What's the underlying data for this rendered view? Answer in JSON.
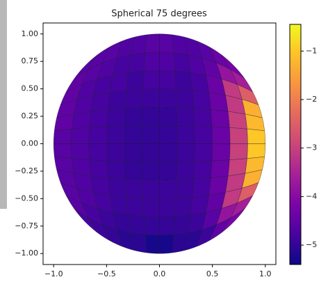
{
  "chart_data": {
    "type": "mesh",
    "title": "Spherical 75 degrees",
    "cmap": "plasma",
    "z": [
      [
        -4.6,
        -4.6,
        -4.6,
        -4.7,
        -4.7,
        -4.6,
        -4.6,
        -4.7,
        -4.7,
        -4.6,
        -4.4,
        -4.2
      ],
      [
        -4.5,
        -4.6,
        -4.7,
        -4.8,
        -4.8,
        -4.7,
        -4.7,
        -4.8,
        -4.7,
        -4.5,
        -3.8,
        -3.6
      ],
      [
        -4.5,
        -4.7,
        -4.8,
        -4.8,
        -4.9,
        -4.8,
        -4.8,
        -4.9,
        -4.8,
        -4.4,
        -3.1,
        -2.5
      ],
      [
        -4.5,
        -4.7,
        -4.8,
        -4.9,
        -4.9,
        -4.9,
        -4.9,
        -4.9,
        -4.8,
        -4.4,
        -3.1,
        -1.3
      ],
      [
        -4.5,
        -4.7,
        -4.8,
        -4.9,
        -5.0,
        -5.0,
        -5.0,
        -4.9,
        -4.8,
        -4.4,
        -3.0,
        -1.2
      ],
      [
        -4.6,
        -4.7,
        -4.8,
        -4.9,
        -5.0,
        -5.0,
        -5.0,
        -4.9,
        -4.8,
        -4.4,
        -3.0,
        -1.0
      ],
      [
        -4.6,
        -4.7,
        -4.8,
        -4.9,
        -5.0,
        -5.0,
        -5.0,
        -4.9,
        -4.8,
        -4.4,
        -3.0,
        -1.0
      ],
      [
        -4.6,
        -4.7,
        -4.8,
        -4.9,
        -5.0,
        -5.0,
        -5.0,
        -4.9,
        -4.8,
        -4.4,
        -3.0,
        -1.2
      ],
      [
        -4.6,
        -4.7,
        -4.8,
        -4.9,
        -4.9,
        -4.9,
        -4.9,
        -4.9,
        -4.8,
        -4.4,
        -3.1,
        -1.3
      ],
      [
        -4.6,
        -4.7,
        -4.8,
        -4.9,
        -4.9,
        -4.9,
        -4.9,
        -4.9,
        -4.8,
        -4.5,
        -3.1,
        -2.5
      ],
      [
        -4.6,
        -4.8,
        -4.9,
        -5.0,
        -5.0,
        -5.0,
        -5.0,
        -5.0,
        -4.9,
        -4.6,
        -3.8,
        -3.6
      ],
      [
        -4.8,
        -4.9,
        -5.0,
        -5.1,
        -5.1,
        -5.3,
        -5.3,
        -5.1,
        -5.1,
        -4.9,
        -4.5,
        -4.2
      ]
    ],
    "xlim": [
      -1.1,
      1.1
    ],
    "ylim": [
      -1.1,
      1.1
    ],
    "xticks": [
      {
        "value": -1.0,
        "label": "−1.0"
      },
      {
        "value": -0.5,
        "label": "−0.5"
      },
      {
        "value": 0.0,
        "label": "0.0"
      },
      {
        "value": 0.5,
        "label": "0.5"
      },
      {
        "value": 1.0,
        "label": "1.0"
      }
    ],
    "yticks": [
      {
        "value": -1.0,
        "label": "−1.00"
      },
      {
        "value": -0.75,
        "label": "−0.75"
      },
      {
        "value": -0.5,
        "label": "−0.50"
      },
      {
        "value": -0.25,
        "label": "−0.25"
      },
      {
        "value": 0.0,
        "label": "0.00"
      },
      {
        "value": 0.25,
        "label": "0.25"
      },
      {
        "value": 0.5,
        "label": "0.50"
      },
      {
        "value": 0.75,
        "label": "0.75"
      },
      {
        "value": 1.0,
        "label": "1.00"
      }
    ],
    "clim": [
      -5.4,
      -0.45
    ],
    "cticks": [
      {
        "value": -5,
        "label": "−5"
      },
      {
        "value": -4,
        "label": "−4"
      },
      {
        "value": -3,
        "label": "−3"
      },
      {
        "value": -2,
        "label": "−2"
      },
      {
        "value": -1,
        "label": "−1"
      }
    ]
  }
}
